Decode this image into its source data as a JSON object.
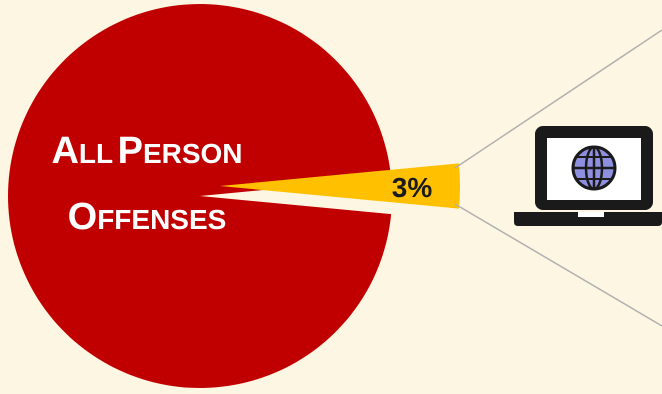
{
  "chart_data": {
    "type": "pie",
    "slices": [
      {
        "label": "All Person Offenses",
        "value": 97,
        "color": "#c00000"
      },
      {
        "label": "3%",
        "value": 3,
        "color": "#ffc000"
      }
    ],
    "title": "",
    "annotation_label": "3%"
  },
  "labels": {
    "line1_first_initial": "A",
    "line1_first_rest": "LL",
    "line1_second_initial": "P",
    "line1_second_rest": "ERSON",
    "line2_initial": "O",
    "line2_rest": "FFENSES",
    "slice_pct": "3%"
  },
  "icons": {
    "laptop": "laptop-globe-icon"
  },
  "colors": {
    "background": "#fdf6e3",
    "main_slice": "#c00000",
    "small_slice": "#ffc000",
    "icon": "#1a1a1a",
    "globe": "#8f8fe0",
    "connector": "#b0b0b0"
  }
}
